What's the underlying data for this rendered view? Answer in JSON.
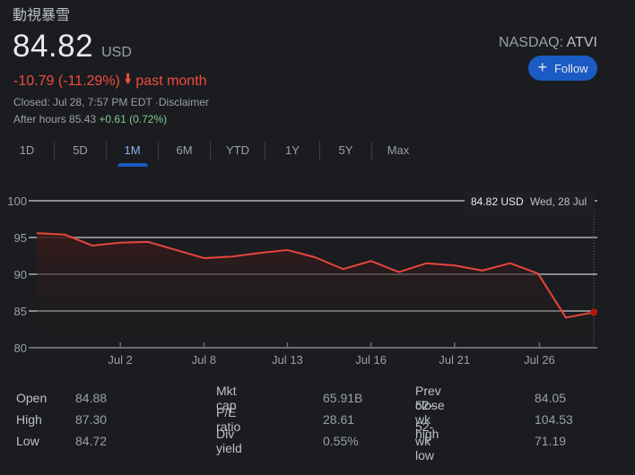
{
  "header": {
    "company_name": "動視暴雪",
    "price": "84.82",
    "currency": "USD",
    "change": "-10.79 (-11.29%)",
    "change_direction_icon": "arrow-down-icon",
    "change_period": "past month",
    "closed_text": "Closed: Jul 28, 7:57 PM EDT",
    "disclaimer": "·Disclaimer",
    "after_hours_label": "After hours 85.43",
    "after_hours_change": "+0.61 (0.72%)",
    "exchange": "NASDAQ:",
    "ticker": "ATVI",
    "follow_label": "Follow",
    "follow_icon": "plus-icon"
  },
  "colors": {
    "negative": "#f04b3f",
    "positive": "#81c995",
    "accent": "#1a5bc4",
    "active_tab": "#8ab4f8",
    "line": "#e8453c",
    "marker": "#b3170f"
  },
  "tabs": [
    {
      "label": "1D",
      "active": false
    },
    {
      "label": "5D",
      "active": false
    },
    {
      "label": "1M",
      "active": true
    },
    {
      "label": "6M",
      "active": false
    },
    {
      "label": "YTD",
      "active": false
    },
    {
      "label": "1Y",
      "active": false
    },
    {
      "label": "5Y",
      "active": false
    },
    {
      "label": "Max",
      "active": false
    }
  ],
  "chart_data": {
    "type": "area",
    "title": "",
    "xlabel": "",
    "ylabel": "",
    "ylim": [
      80,
      100
    ],
    "yticks": [
      100,
      95,
      90,
      85,
      80
    ],
    "xtick_labels": [
      {
        "label": "Jul 2",
        "index": 3
      },
      {
        "label": "Jul 8",
        "index": 6
      },
      {
        "label": "Jul 13",
        "index": 9
      },
      {
        "label": "Jul 16",
        "index": 12
      },
      {
        "label": "Jul 21",
        "index": 15
      },
      {
        "label": "Jul 26",
        "index": 18.05
      }
    ],
    "grid": true,
    "series": [
      {
        "name": "ATVI",
        "values": [
          95.6,
          95.4,
          93.9,
          94.3,
          94.4,
          93.3,
          92.2,
          92.4,
          92.9,
          93.3,
          92.3,
          90.7,
          91.8,
          90.3,
          91.5,
          91.2,
          90.5,
          91.5,
          90.1,
          84.1,
          84.82
        ]
      }
    ],
    "tooltip": {
      "value": "84.82 USD",
      "date": "Wed, 28 Jul"
    }
  },
  "stats": [
    [
      {
        "label": "Open",
        "value": "84.88"
      },
      {
        "label": "Mkt cap",
        "value": "65.91B"
      },
      {
        "label": "Prev close",
        "value": "84.05"
      }
    ],
    [
      {
        "label": "High",
        "value": "87.30"
      },
      {
        "label": "P/E ratio",
        "value": "28.61"
      },
      {
        "label": "52-wk high",
        "value": "104.53"
      }
    ],
    [
      {
        "label": "Low",
        "value": "84.72"
      },
      {
        "label": "Div yield",
        "value": "0.55%"
      },
      {
        "label": "52-wk low",
        "value": "71.19"
      }
    ]
  ]
}
